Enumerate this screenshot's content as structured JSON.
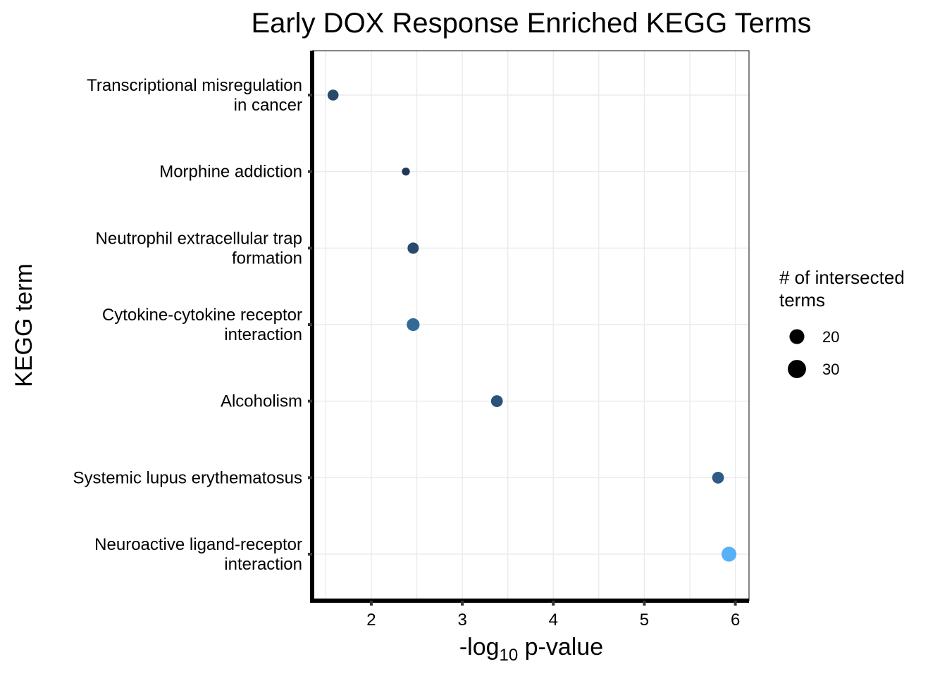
{
  "chart_data": {
    "type": "scatter",
    "title": "Early DOX Response Enriched KEGG Terms",
    "xlabel": {
      "prefix": "-log",
      "subscript": "10",
      "suffix": " p-value"
    },
    "ylabel": "KEGG term",
    "xlim": [
      1.35,
      6.15
    ],
    "xticks": [
      2,
      3,
      4,
      5,
      6
    ],
    "grid": true,
    "legend_position": "right",
    "legend": {
      "title_lines": [
        "# of intersected",
        " terms"
      ],
      "entries": [
        {
          "label": "20",
          "size": 20
        },
        {
          "label": "30",
          "size": 30
        }
      ]
    },
    "points": [
      {
        "term_lines": [
          "Transcriptional misregulation",
          "in cancer"
        ],
        "x": 1.58,
        "size": 19,
        "color": "#274a6d"
      },
      {
        "term_lines": [
          "Morphine addiction"
        ],
        "x": 2.38,
        "size": 10,
        "color": "#1f3a57"
      },
      {
        "term_lines": [
          "Neutrophil extracellular trap",
          "formation"
        ],
        "x": 2.46,
        "size": 20,
        "color": "#274a6d"
      },
      {
        "term_lines": [
          "Cytokine-cytokine receptor",
          "interaction"
        ],
        "x": 2.46,
        "size": 26,
        "color": "#336b98"
      },
      {
        "term_lines": [
          "Alcoholism"
        ],
        "x": 3.38,
        "size": 22,
        "color": "#2b5278"
      },
      {
        "term_lines": [
          "Systemic lupus erythematosus"
        ],
        "x": 5.81,
        "size": 22,
        "color": "#2f5c86"
      },
      {
        "term_lines": [
          "Neuroactive ligand-receptor",
          "interaction"
        ],
        "x": 5.93,
        "size": 35,
        "color": "#56b1f7"
      }
    ]
  }
}
